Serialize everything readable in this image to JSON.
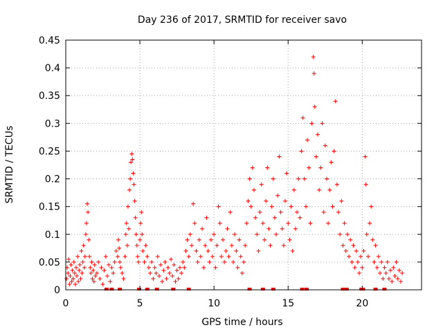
{
  "chart_data": {
    "type": "scatter",
    "title": "Day 236 of 2017, SRMTID for receiver savo",
    "xlabel": "GPS time / hours",
    "ylabel": "SRMTID / TECUs",
    "xlim": [
      0,
      24
    ],
    "ylim": [
      0,
      0.45
    ],
    "xticks": [
      0,
      5,
      10,
      15,
      20
    ],
    "xtick_labels": [
      "0",
      "5",
      "10",
      "15",
      "20"
    ],
    "yticks": [
      0,
      0.05,
      0.1,
      0.15,
      0.2,
      0.25,
      0.3,
      0.35,
      0.4,
      0.45
    ],
    "ytick_labels": [
      "0",
      "0.05",
      "0.1",
      "0.15",
      "0.2",
      "0.25",
      "0.3",
      "0.35",
      "0.4",
      "0.45"
    ],
    "grid": true,
    "marker": "+",
    "color": "#ff0000",
    "points": [
      [
        0.05,
        0.02
      ],
      [
        0.1,
        0.04
      ],
      [
        0.15,
        0.03
      ],
      [
        0.2,
        0.055
      ],
      [
        0.25,
        0.01
      ],
      [
        0.3,
        0.025
      ],
      [
        0.35,
        0.045
      ],
      [
        0.4,
        0.015
      ],
      [
        0.45,
        0.035
      ],
      [
        0.5,
        0.02
      ],
      [
        0.55,
        0.05
      ],
      [
        0.6,
        0.03
      ],
      [
        0.65,
        0.01
      ],
      [
        0.7,
        0.04
      ],
      [
        0.75,
        0.025
      ],
      [
        0.8,
        0.06
      ],
      [
        0.85,
        0.015
      ],
      [
        0.9,
        0.035
      ],
      [
        0.95,
        0.045
      ],
      [
        1.0,
        0.02
      ],
      [
        1.05,
        0.07
      ],
      [
        1.1,
        0.03
      ],
      [
        1.15,
        0.05
      ],
      [
        1.2,
        0.08
      ],
      [
        1.25,
        0.04
      ],
      [
        1.3,
        0.06
      ],
      [
        1.35,
        0.1
      ],
      [
        1.4,
        0.12
      ],
      [
        1.45,
        0.155
      ],
      [
        1.5,
        0.14
      ],
      [
        1.55,
        0.09
      ],
      [
        1.6,
        0.06
      ],
      [
        1.65,
        0.04
      ],
      [
        1.7,
        0.03
      ],
      [
        1.75,
        0.05
      ],
      [
        1.8,
        0.02
      ],
      [
        1.85,
        0.035
      ],
      [
        1.9,
        0.015
      ],
      [
        1.95,
        0.045
      ],
      [
        2.0,
        0.025
      ],
      [
        2.1,
        0.03
      ],
      [
        2.2,
        0.05
      ],
      [
        2.3,
        0.02
      ],
      [
        2.4,
        0.04
      ],
      [
        2.5,
        0.01
      ],
      [
        2.6,
        0.035
      ],
      [
        2.7,
        0.06
      ],
      [
        2.8,
        0.025
      ],
      [
        2.9,
        0.045
      ],
      [
        3.0,
        0.015
      ],
      [
        3.1,
        0.04
      ],
      [
        3.2,
        0.03
      ],
      [
        3.3,
        0.05
      ],
      [
        3.4,
        0.07
      ],
      [
        3.5,
        0.06
      ],
      [
        3.55,
        0.09
      ],
      [
        3.6,
        0.075
      ],
      [
        3.65,
        0.05
      ],
      [
        3.7,
        0.04
      ],
      [
        3.8,
        0.03
      ],
      [
        3.9,
        0.02
      ],
      [
        4.0,
        0.06
      ],
      [
        4.05,
        0.1
      ],
      [
        4.1,
        0.12
      ],
      [
        4.15,
        0.08
      ],
      [
        4.2,
        0.15
      ],
      [
        4.25,
        0.11
      ],
      [
        4.3,
        0.18
      ],
      [
        4.35,
        0.2
      ],
      [
        4.4,
        0.23
      ],
      [
        4.45,
        0.245
      ],
      [
        4.5,
        0.235
      ],
      [
        4.55,
        0.21
      ],
      [
        4.6,
        0.19
      ],
      [
        4.65,
        0.16
      ],
      [
        4.7,
        0.13
      ],
      [
        4.75,
        0.1
      ],
      [
        4.8,
        0.08
      ],
      [
        4.85,
        0.06
      ],
      [
        4.9,
        0.05
      ],
      [
        5.0,
        0.09
      ],
      [
        5.05,
        0.12
      ],
      [
        5.1,
        0.14
      ],
      [
        5.15,
        0.1
      ],
      [
        5.2,
        0.07
      ],
      [
        5.3,
        0.05
      ],
      [
        5.4,
        0.08
      ],
      [
        5.5,
        0.06
      ],
      [
        5.6,
        0.04
      ],
      [
        5.7,
        0.03
      ],
      [
        5.8,
        0.05
      ],
      [
        5.9,
        0.02
      ],
      [
        6.0,
        0.04
      ],
      [
        6.1,
        0.03
      ],
      [
        6.2,
        0.06
      ],
      [
        6.3,
        0.025
      ],
      [
        6.4,
        0.045
      ],
      [
        6.5,
        0.015
      ],
      [
        6.6,
        0.035
      ],
      [
        6.7,
        0.05
      ],
      [
        6.8,
        0.02
      ],
      [
        6.9,
        0.04
      ],
      [
        7.0,
        0.03
      ],
      [
        7.1,
        0.055
      ],
      [
        7.2,
        0.025
      ],
      [
        7.3,
        0.045
      ],
      [
        7.4,
        0.015
      ],
      [
        7.5,
        0.035
      ],
      [
        7.6,
        0.02
      ],
      [
        7.7,
        0.04
      ],
      [
        7.8,
        0.03
      ],
      [
        7.9,
        0.05
      ],
      [
        8.0,
        0.04
      ],
      [
        8.1,
        0.07
      ],
      [
        8.2,
        0.09
      ],
      [
        8.3,
        0.06
      ],
      [
        8.4,
        0.1
      ],
      [
        8.5,
        0.08
      ],
      [
        8.6,
        0.155
      ],
      [
        8.7,
        0.12
      ],
      [
        8.8,
        0.07
      ],
      [
        8.9,
        0.05
      ],
      [
        9.0,
        0.09
      ],
      [
        9.1,
        0.06
      ],
      [
        9.2,
        0.11
      ],
      [
        9.3,
        0.04
      ],
      [
        9.4,
        0.08
      ],
      [
        9.5,
        0.13
      ],
      [
        9.6,
        0.07
      ],
      [
        9.7,
        0.05
      ],
      [
        9.8,
        0.09
      ],
      [
        9.9,
        0.06
      ],
      [
        10.0,
        0.1
      ],
      [
        10.1,
        0.04
      ],
      [
        10.2,
        0.08
      ],
      [
        10.3,
        0.15
      ],
      [
        10.4,
        0.12
      ],
      [
        10.5,
        0.06
      ],
      [
        10.6,
        0.09
      ],
      [
        10.7,
        0.05
      ],
      [
        10.8,
        0.07
      ],
      [
        10.9,
        0.11
      ],
      [
        11.0,
        0.06
      ],
      [
        11.1,
        0.14
      ],
      [
        11.2,
        0.08
      ],
      [
        11.3,
        0.05
      ],
      [
        11.4,
        0.1
      ],
      [
        11.5,
        0.07
      ],
      [
        11.6,
        0.04
      ],
      [
        11.7,
        0.09
      ],
      [
        11.8,
        0.06
      ],
      [
        11.9,
        0.03
      ],
      [
        12.0,
        0.05
      ],
      [
        12.1,
        0.08
      ],
      [
        12.2,
        0.12
      ],
      [
        12.3,
        0.16
      ],
      [
        12.4,
        0.2
      ],
      [
        12.5,
        0.15
      ],
      [
        12.6,
        0.22
      ],
      [
        12.7,
        0.18
      ],
      [
        12.8,
        0.13
      ],
      [
        12.9,
        0.1
      ],
      [
        13.0,
        0.07
      ],
      [
        13.1,
        0.14
      ],
      [
        13.2,
        0.19
      ],
      [
        13.3,
        0.12
      ],
      [
        13.4,
        0.09
      ],
      [
        13.5,
        0.16
      ],
      [
        13.6,
        0.22
      ],
      [
        13.7,
        0.11
      ],
      [
        13.8,
        0.08
      ],
      [
        13.9,
        0.15
      ],
      [
        14.0,
        0.2
      ],
      [
        14.1,
        0.13
      ],
      [
        14.2,
        0.1
      ],
      [
        14.3,
        0.17
      ],
      [
        14.4,
        0.24
      ],
      [
        14.5,
        0.14
      ],
      [
        14.6,
        0.11
      ],
      [
        14.7,
        0.08
      ],
      [
        14.8,
        0.16
      ],
      [
        14.9,
        0.21
      ],
      [
        15.0,
        0.12
      ],
      [
        15.1,
        0.09
      ],
      [
        15.2,
        0.15
      ],
      [
        15.3,
        0.07
      ],
      [
        15.4,
        0.18
      ],
      [
        15.5,
        0.11
      ],
      [
        15.6,
        0.14
      ],
      [
        15.7,
        0.2
      ],
      [
        15.8,
        0.13
      ],
      [
        15.9,
        0.25
      ],
      [
        16.0,
        0.31
      ],
      [
        16.1,
        0.2
      ],
      [
        16.2,
        0.15
      ],
      [
        16.3,
        0.27
      ],
      [
        16.4,
        0.22
      ],
      [
        16.5,
        0.12
      ],
      [
        16.6,
        0.3
      ],
      [
        16.7,
        0.42
      ],
      [
        16.75,
        0.39
      ],
      [
        16.8,
        0.33
      ],
      [
        16.9,
        0.24
      ],
      [
        17.0,
        0.28
      ],
      [
        17.1,
        0.18
      ],
      [
        17.2,
        0.22
      ],
      [
        17.3,
        0.3
      ],
      [
        17.4,
        0.14
      ],
      [
        17.5,
        0.26
      ],
      [
        17.6,
        0.2
      ],
      [
        17.7,
        0.12
      ],
      [
        17.8,
        0.18
      ],
      [
        17.9,
        0.23
      ],
      [
        18.0,
        0.15
      ],
      [
        18.1,
        0.25
      ],
      [
        18.2,
        0.34
      ],
      [
        18.3,
        0.19
      ],
      [
        18.4,
        0.14
      ],
      [
        18.5,
        0.1
      ],
      [
        18.6,
        0.16
      ],
      [
        18.7,
        0.08
      ],
      [
        18.8,
        0.12
      ],
      [
        18.9,
        0.07
      ],
      [
        19.0,
        0.1
      ],
      [
        19.1,
        0.06
      ],
      [
        19.2,
        0.09
      ],
      [
        19.3,
        0.05
      ],
      [
        19.4,
        0.08
      ],
      [
        19.5,
        0.04
      ],
      [
        19.6,
        0.07
      ],
      [
        19.7,
        0.05
      ],
      [
        19.8,
        0.03
      ],
      [
        19.9,
        0.06
      ],
      [
        20.0,
        0.04
      ],
      [
        20.1,
        0.07
      ],
      [
        20.2,
        0.24
      ],
      [
        20.25,
        0.19
      ],
      [
        20.3,
        0.1
      ],
      [
        20.4,
        0.06
      ],
      [
        20.5,
        0.12
      ],
      [
        20.6,
        0.15
      ],
      [
        20.7,
        0.09
      ],
      [
        20.8,
        0.05
      ],
      [
        20.9,
        0.08
      ],
      [
        21.0,
        0.04
      ],
      [
        21.1,
        0.06
      ],
      [
        21.2,
        0.03
      ],
      [
        21.3,
        0.05
      ],
      [
        21.4,
        0.02
      ],
      [
        21.5,
        0.04
      ],
      [
        21.6,
        0.03
      ],
      [
        21.7,
        0.05
      ],
      [
        21.8,
        0.02
      ],
      [
        21.9,
        0.035
      ],
      [
        22.0,
        0.015
      ],
      [
        22.1,
        0.04
      ],
      [
        22.2,
        0.025
      ],
      [
        22.3,
        0.05
      ],
      [
        22.4,
        0.02
      ],
      [
        22.5,
        0.035
      ],
      [
        22.6,
        0.015
      ],
      [
        22.7,
        0.03
      ]
    ],
    "baseline_markers_x": [
      2.75,
      3.1,
      3.65,
      4.95,
      5.5,
      6.15,
      7.25,
      8.3,
      12.4,
      13.3,
      14.0,
      15.95,
      16.25,
      18.7,
      18.95,
      19.95,
      20.05,
      20.9,
      21.5
    ]
  }
}
